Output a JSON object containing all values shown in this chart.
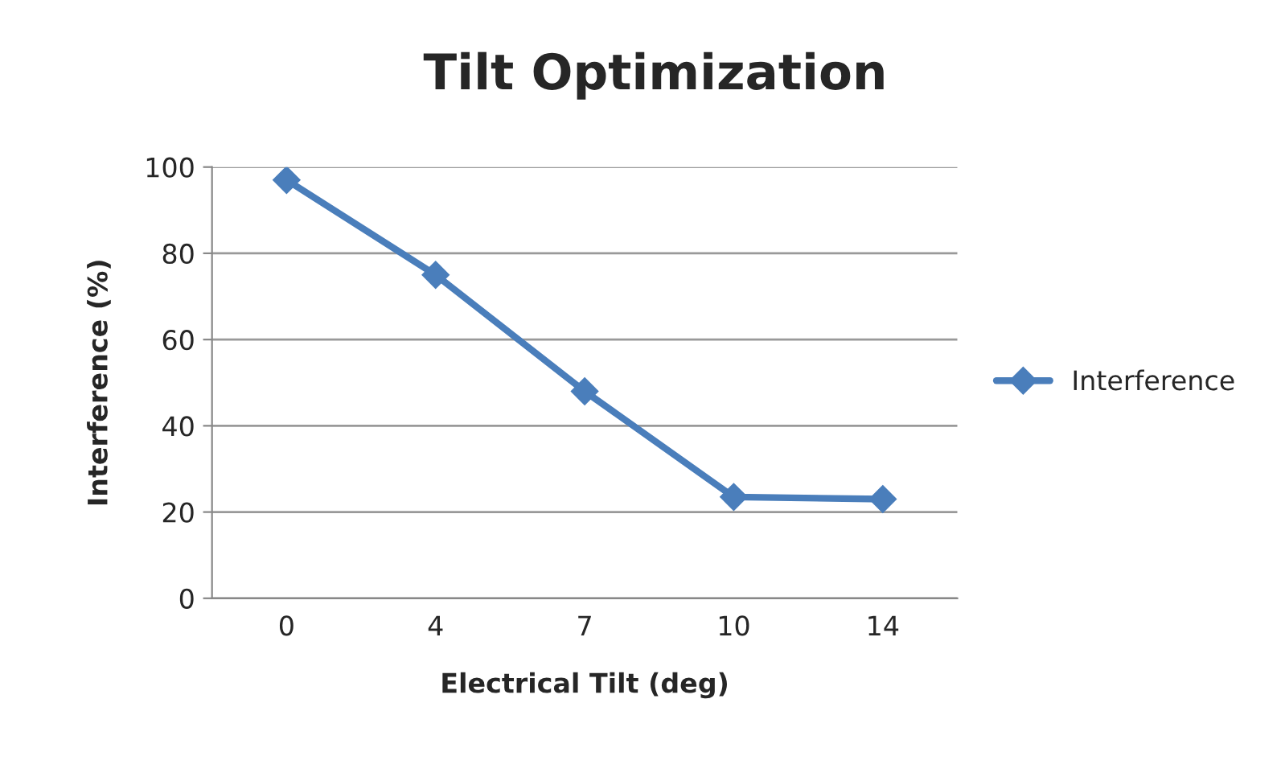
{
  "chart_data": {
    "type": "line",
    "title": "Tilt Optimization",
    "xlabel": "Electrical Tilt (deg)",
    "ylabel": "Interference (%)",
    "categories": [
      "0",
      "4",
      "7",
      "10",
      "14"
    ],
    "series": [
      {
        "name": "Interference",
        "color": "#4a7ebb",
        "values": [
          97,
          75,
          48,
          23.5,
          23
        ]
      }
    ],
    "ylim": [
      0,
      100
    ],
    "yticks": [
      0,
      20,
      40,
      60,
      80,
      100
    ],
    "grid": "y",
    "legend": "right",
    "marker": "diamond",
    "line_style": "solid"
  }
}
